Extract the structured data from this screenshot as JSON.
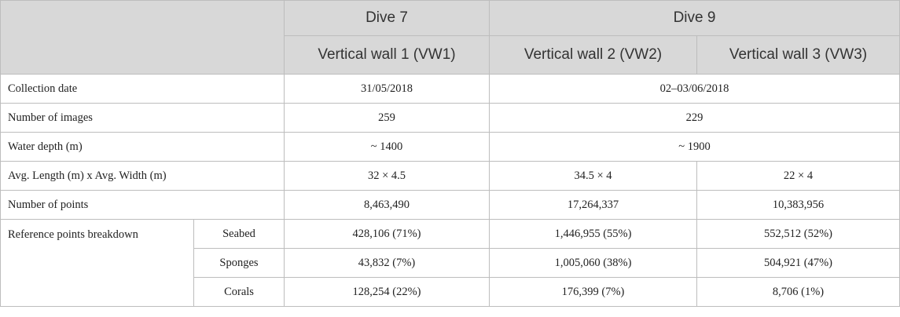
{
  "header": {
    "dive7": "Dive 7",
    "dive9": "Dive 9",
    "vw1": "Vertical wall 1 (VW1)",
    "vw2": "Vertical wall 2 (VW2)",
    "vw3": "Vertical wall 3 (VW3)"
  },
  "rows": {
    "collection_date": {
      "label": "Collection date",
      "vw1": "31/05/2018",
      "dive9": "02–03/06/2018"
    },
    "num_images": {
      "label": "Number of images",
      "vw1": "259",
      "dive9": "229"
    },
    "water_depth": {
      "label": "Water depth (m)",
      "vw1": "~ 1400",
      "dive9": "~ 1900"
    },
    "avg_dims": {
      "label": "Avg. Length (m) x Avg. Width (m)",
      "vw1": "32 × 4.5",
      "vw2": "34.5 × 4",
      "vw3": "22 × 4"
    },
    "num_points": {
      "label": "Number of points",
      "vw1": "8,463,490",
      "vw2": "17,264,337",
      "vw3": "10,383,956"
    },
    "breakdown": {
      "label": "Reference points breakdown",
      "seabed": {
        "label": "Seabed",
        "vw1": "428,106 (71%)",
        "vw2": "1,446,955 (55%)",
        "vw3": "552,512 (52%)"
      },
      "sponges": {
        "label": "Sponges",
        "vw1": "43,832 (7%)",
        "vw2": "1,005,060 (38%)",
        "vw3": "504,921 (47%)"
      },
      "corals": {
        "label": "Corals",
        "vw1": "128,254 (22%)",
        "vw2": "176,399 (7%)",
        "vw3": "8,706 (1%)"
      }
    }
  }
}
